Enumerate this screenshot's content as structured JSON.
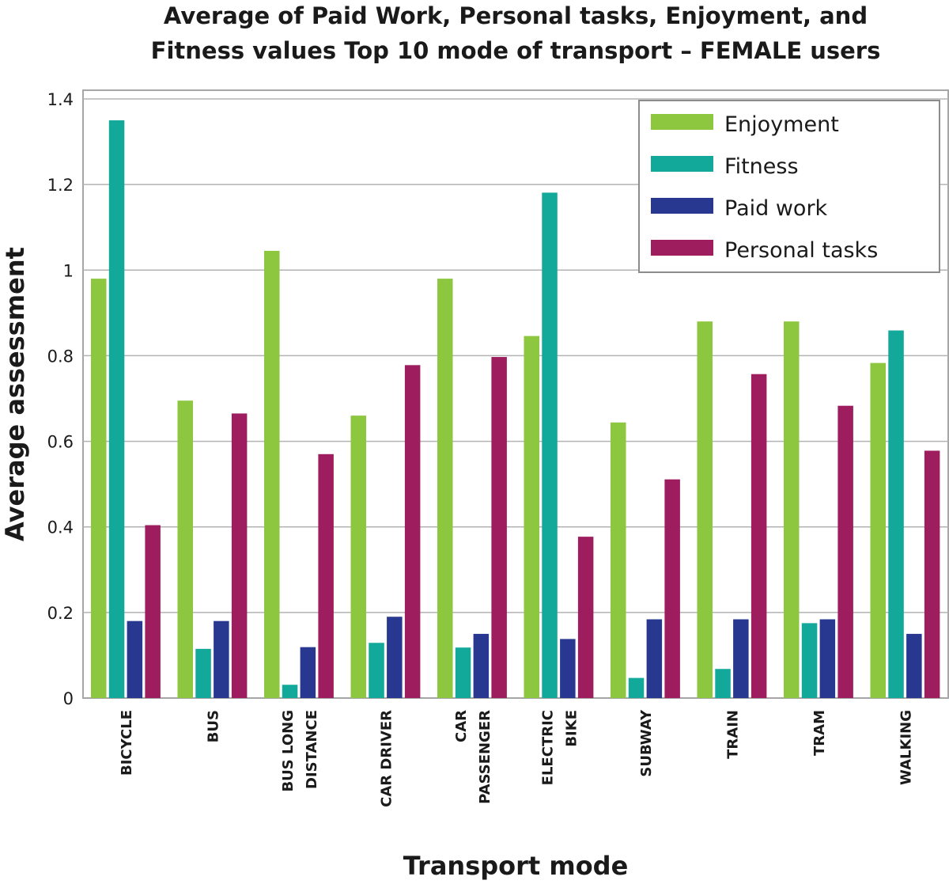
{
  "chart_data": {
    "type": "bar",
    "title": [
      "Average of Paid Work, Personal tasks, Enjoyment, and",
      "Fitness values Top 10 mode of transport – FEMALE users"
    ],
    "xlabel": "Transport mode",
    "ylabel": "Average assessment",
    "ylim": [
      0,
      1.42
    ],
    "yticks": [
      0,
      0.2,
      0.4,
      0.6,
      0.8,
      1,
      1.2,
      1.4
    ],
    "ytick_labels": [
      "0",
      "0.2",
      "0.4",
      "0.6",
      "0.8",
      "1",
      "1.2",
      "1.4"
    ],
    "grid": true,
    "legend_position": "top-right",
    "categories": [
      "BICYCLE",
      "BUS",
      "BUS LONG DISTANCE",
      "CAR DRIVER",
      "CAR PASSENGER",
      "ELECTRIC BIKE",
      "SUBWAY",
      "TRAIN",
      "TRAM",
      "WALKING"
    ],
    "category_label_lines": [
      [
        "BICYCLE"
      ],
      [
        "BUS"
      ],
      [
        "BUS LONG",
        "DISTANCE"
      ],
      [
        "CAR DRIVER"
      ],
      [
        "CAR",
        "PASSENGER"
      ],
      [
        "ELECTRIC",
        "BIKE"
      ],
      [
        "SUBWAY"
      ],
      [
        "TRAIN"
      ],
      [
        "TRAM"
      ],
      [
        "WALKING"
      ]
    ],
    "series": [
      {
        "name": "Enjoyment",
        "color": "#8dc63f",
        "values": [
          0.98,
          0.695,
          1.045,
          0.66,
          0.98,
          0.846,
          0.644,
          0.88,
          0.88,
          0.783
        ]
      },
      {
        "name": "Fitness",
        "color": "#12a89a",
        "values": [
          1.35,
          0.115,
          0.031,
          0.129,
          0.118,
          1.181,
          0.047,
          0.068,
          0.175,
          0.859
        ]
      },
      {
        "name": "Paid work",
        "color": "#283891",
        "values": [
          0.18,
          0.18,
          0.119,
          0.19,
          0.15,
          0.138,
          0.184,
          0.184,
          0.184,
          0.15
        ]
      },
      {
        "name": "Personal tasks",
        "color": "#9e1d5f",
        "values": [
          0.404,
          0.665,
          0.57,
          0.778,
          0.797,
          0.377,
          0.511,
          0.757,
          0.683,
          0.578
        ]
      }
    ]
  }
}
